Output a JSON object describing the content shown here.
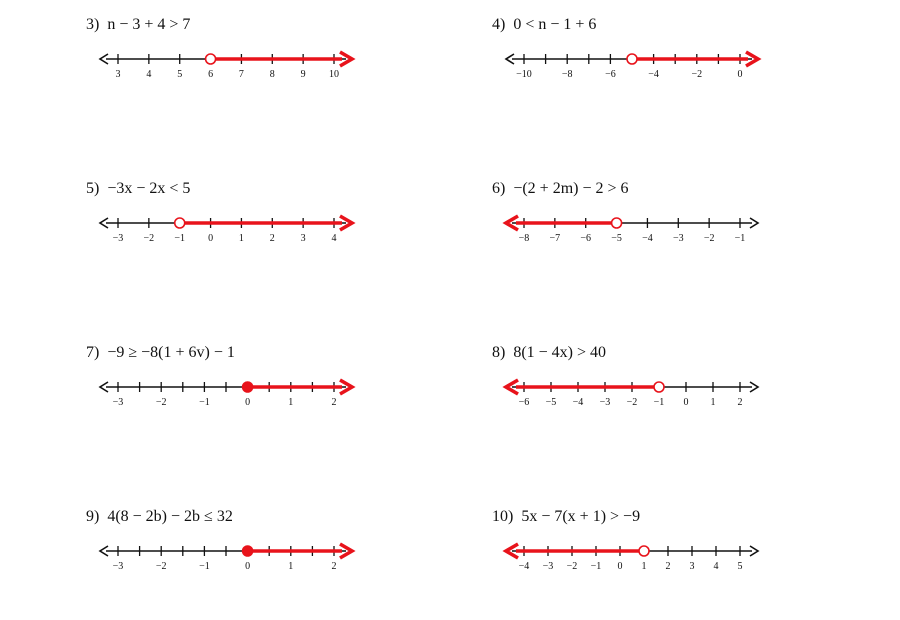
{
  "colors": {
    "shade": "#e8131b",
    "axis": "#111111",
    "open_fill": "#ffffff"
  },
  "problems": [
    {
      "number": "3)",
      "expression": "n − 3 + 4 > 7",
      "ticks": [
        "3",
        "4",
        "5",
        "6",
        "7",
        "8",
        "9",
        "10"
      ],
      "point": 6,
      "closed": false,
      "direction": "right"
    },
    {
      "number": "4)",
      "expression": "0 < n − 1 + 6",
      "ticks": [
        "−10",
        "",
        "−8",
        "",
        "−6",
        "",
        "−4",
        "",
        "−2",
        "",
        "0"
      ],
      "point": -5,
      "closed": false,
      "direction": "right"
    },
    {
      "number": "5)",
      "expression": "−3x − 2x < 5",
      "ticks": [
        "−3",
        "−2",
        "−1",
        "0",
        "1",
        "2",
        "3",
        "4"
      ],
      "point": -1,
      "closed": false,
      "direction": "right"
    },
    {
      "number": "6)",
      "expression": "−(2 + 2m) − 2 > 6",
      "ticks": [
        "−8",
        "−7",
        "−6",
        "−5",
        "−4",
        "−3",
        "−2",
        "−1"
      ],
      "point": -5,
      "closed": false,
      "direction": "left"
    },
    {
      "number": "7)",
      "expression": "−9 ≥ −8(1 + 6v) − 1",
      "ticks": [
        "−3",
        "",
        "−2",
        "",
        "−1",
        "",
        "0",
        "",
        "1",
        "",
        "2"
      ],
      "point": 0,
      "closed": true,
      "direction": "right"
    },
    {
      "number": "8)",
      "expression": "8(1 − 4x) > 40",
      "ticks": [
        "−6",
        "−5",
        "−4",
        "−3",
        "−2",
        "−1",
        "0",
        "1",
        "2"
      ],
      "point": -1,
      "closed": false,
      "direction": "left"
    },
    {
      "number": "9)",
      "expression": "4(8 − 2b) − 2b ≤ 32",
      "ticks": [
        "−3",
        "",
        "−2",
        "",
        "−1",
        "",
        "0",
        "",
        "1",
        "",
        "2"
      ],
      "point": 0,
      "closed": true,
      "direction": "right"
    },
    {
      "number": "10)",
      "expression": "5x − 7(x + 1) > −9",
      "ticks": [
        "−4",
        "−3",
        "−2",
        "−1",
        "0",
        "1",
        "2",
        "3",
        "4",
        "5"
      ],
      "point": 1,
      "closed": false,
      "direction": "left"
    }
  ]
}
